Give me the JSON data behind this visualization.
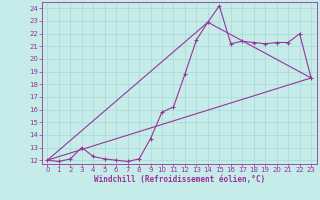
{
  "xlabel": "Windchill (Refroidissement éolien,°C)",
  "background_color": "#c5ece9",
  "line_color": "#993399",
  "grid_color": "#a8d8d5",
  "xlim": [
    -0.5,
    23.5
  ],
  "ylim": [
    11.7,
    24.5
  ],
  "yticks": [
    12,
    13,
    14,
    15,
    16,
    17,
    18,
    19,
    20,
    21,
    22,
    23,
    24
  ],
  "xticks": [
    0,
    1,
    2,
    3,
    4,
    5,
    6,
    7,
    8,
    9,
    10,
    11,
    12,
    13,
    14,
    15,
    16,
    17,
    18,
    19,
    20,
    21,
    22,
    23
  ],
  "line1_x": [
    0,
    1,
    2,
    3,
    4,
    5,
    6,
    7,
    8,
    9,
    10,
    11,
    12,
    13,
    14,
    15,
    16,
    17,
    18,
    19,
    20,
    21,
    22,
    23
  ],
  "line1_y": [
    12.0,
    11.9,
    12.1,
    13.0,
    12.3,
    12.1,
    12.0,
    11.9,
    12.1,
    13.7,
    15.8,
    16.2,
    18.8,
    21.5,
    22.9,
    24.2,
    21.2,
    21.4,
    21.3,
    21.2,
    21.3,
    21.3,
    22.0,
    18.5
  ],
  "line2_x": [
    0,
    23
  ],
  "line2_y": [
    12.0,
    18.5
  ],
  "line3_x": [
    0,
    14,
    23
  ],
  "line3_y": [
    12.0,
    22.9,
    18.5
  ],
  "marker_size": 2.5,
  "line_width": 0.8
}
